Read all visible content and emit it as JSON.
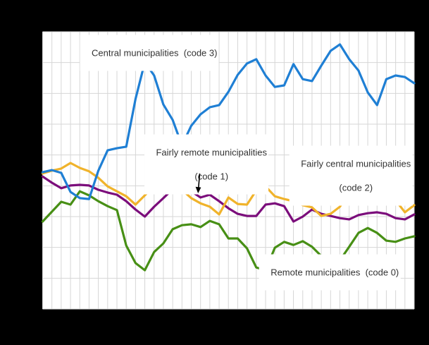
{
  "colors": {
    "background": "#000000",
    "plot_bg": "#ffffff",
    "grid": "#d6d6d6",
    "text": "#333333",
    "arrow": "#000000"
  },
  "chart_data": {
    "type": "line",
    "title": "",
    "xlabel": "",
    "ylabel": "",
    "x_tick_labels_visible": false,
    "y_tick_labels_visible": false,
    "grid": true,
    "x_gridlines": 41,
    "y_gridlines": 10,
    "x": "40 equal time intervals (tick labels not visible in image)",
    "ylim": [
      0,
      9
    ],
    "y_unit": "relative horizontal-gridline units measured from plot bottom (numeric axis labels not visible in image)",
    "legend_position": "none (labels drawn inside plot)",
    "series": [
      {
        "id": "code3",
        "name": "Central municipalities (code 3)",
        "color": "#1f7fd4",
        "values": [
          4.44,
          4.51,
          4.42,
          3.8,
          3.6,
          3.57,
          4.49,
          5.15,
          5.22,
          5.27,
          6.82,
          8.01,
          7.58,
          6.64,
          6.14,
          5.31,
          5.95,
          6.32,
          6.55,
          6.62,
          7.05,
          7.6,
          7.97,
          8.11,
          7.58,
          7.21,
          7.26,
          7.95,
          7.46,
          7.4,
          7.9,
          8.38,
          8.59,
          8.11,
          7.74,
          7.03,
          6.62,
          7.46,
          7.58,
          7.53,
          7.33
        ]
      },
      {
        "id": "code2",
        "name": "Fairly central municipalities (code 2)",
        "color": "#f0b32b",
        "values": [
          4.4,
          4.49,
          4.56,
          4.74,
          4.58,
          4.47,
          4.26,
          3.98,
          3.82,
          3.66,
          3.39,
          3.69,
          4.01,
          3.87,
          4.03,
          3.87,
          3.6,
          3.43,
          3.32,
          3.07,
          3.62,
          3.41,
          3.39,
          3.85,
          3.98,
          3.66,
          3.57,
          3.5,
          3.37,
          3.3,
          3.02,
          3.09,
          3.32,
          3.78,
          3.89,
          3.85,
          3.82,
          3.82,
          3.53,
          3.14,
          3.37
        ]
      },
      {
        "id": "code1",
        "name": "Fairly remote municipalities (code 1)",
        "color": "#7b0d7b",
        "values": [
          4.3,
          4.1,
          3.92,
          4.01,
          4.03,
          4.01,
          3.87,
          3.78,
          3.71,
          3.5,
          3.23,
          3.0,
          3.32,
          3.6,
          3.89,
          4.01,
          3.82,
          3.62,
          3.71,
          3.5,
          3.27,
          3.09,
          3.02,
          3.02,
          3.39,
          3.43,
          3.34,
          2.84,
          3.0,
          3.23,
          3.09,
          3.02,
          2.95,
          2.91,
          3.05,
          3.11,
          3.14,
          3.09,
          2.95,
          2.91,
          3.07
        ]
      },
      {
        "id": "code0",
        "name": "Remote municipalities (code 0)",
        "color": "#478f15",
        "values": [
          2.84,
          3.16,
          3.48,
          3.39,
          3.82,
          3.69,
          3.5,
          3.34,
          3.21,
          2.06,
          1.49,
          1.26,
          1.85,
          2.13,
          2.59,
          2.72,
          2.75,
          2.66,
          2.86,
          2.75,
          2.29,
          2.29,
          1.97,
          1.35,
          1.26,
          1.99,
          2.18,
          2.08,
          2.2,
          2.02,
          1.72,
          1.53,
          1.58,
          2.02,
          2.47,
          2.63,
          2.47,
          2.22,
          2.18,
          2.29,
          2.36
        ]
      }
    ],
    "annotations": [
      {
        "id": "code3",
        "lines": [
          "Central municipalities  (code 3)"
        ]
      },
      {
        "id": "code1",
        "lines": [
          "Fairly remote municipalities",
          "(code 1)"
        ],
        "arrow": "points down to purple line"
      },
      {
        "id": "code2",
        "lines": [
          "Fairly central municipalities",
          "(code 2)"
        ]
      },
      {
        "id": "code0",
        "lines": [
          "Remote municipalities  (code 0)"
        ]
      }
    ]
  }
}
